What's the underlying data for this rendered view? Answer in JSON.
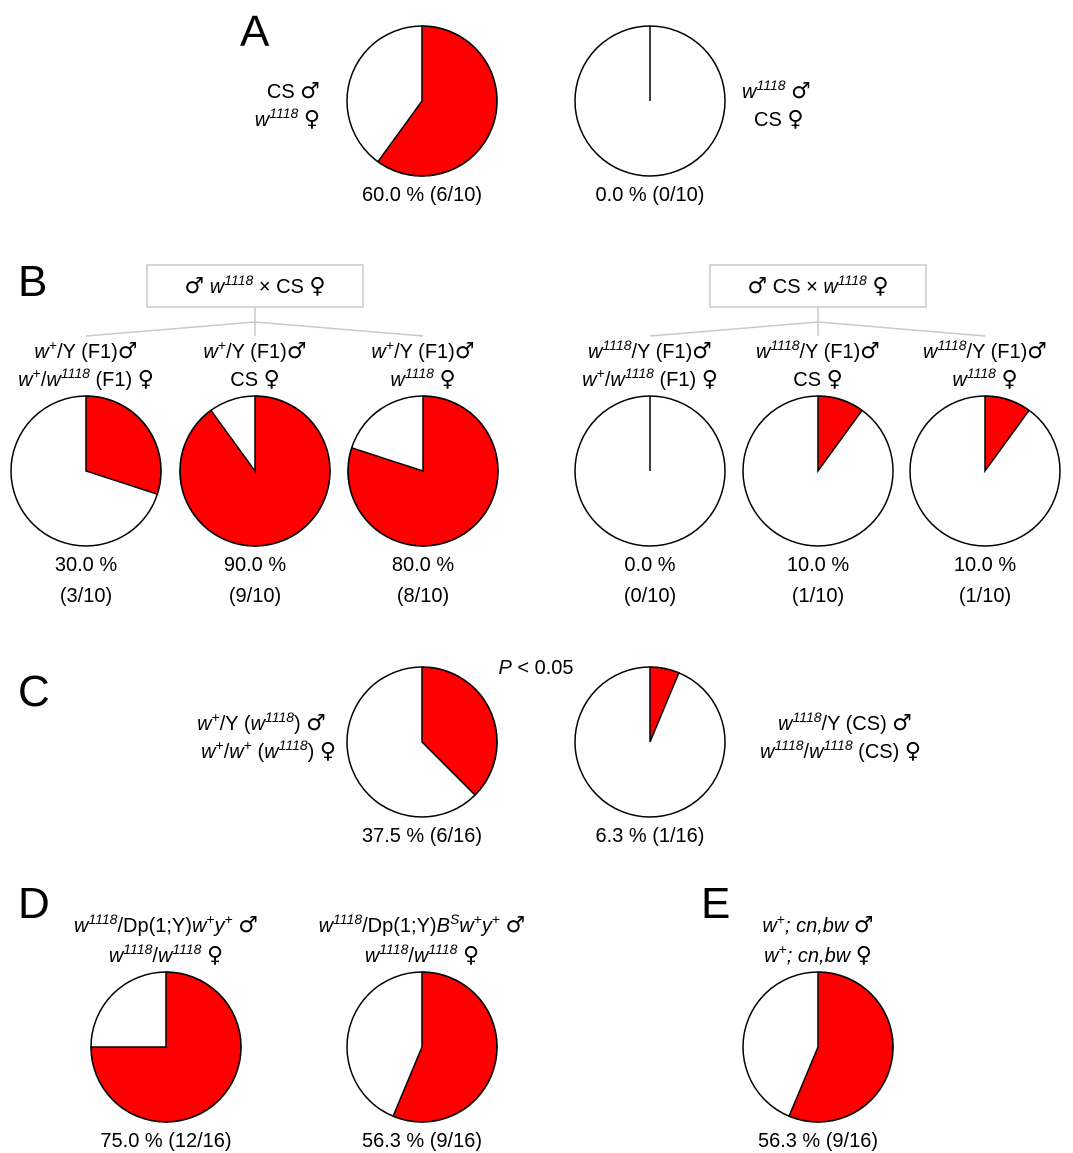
{
  "colors": {
    "positive": "#ff0000",
    "negative": "#ffffff",
    "outline": "#000000",
    "bracket": "#c8c8c8"
  },
  "chart_data": [
    {
      "panel": "A",
      "type": "pie",
      "label_lines": [
        [
          {
            "t": "CS "
          },
          {
            "t": "♂",
            "sym": true
          }
        ],
        [
          {
            "t": "w",
            "i": true
          },
          {
            "t": "1118",
            "i": true,
            "sup": true
          },
          {
            "t": " "
          },
          {
            "t": "♀",
            "sym": true
          }
        ]
      ],
      "pies": [
        {
          "value": 60.0,
          "text": "60.0 % (6/10)"
        },
        {
          "value": 0.0,
          "text": "0.0 % (0/10)"
        }
      ],
      "right_label_lines": [
        [
          {
            "t": "w",
            "i": true
          },
          {
            "t": "1118",
            "i": true,
            "sup": true
          },
          {
            "t": " "
          },
          {
            "t": "♂",
            "sym": true
          }
        ],
        [
          {
            "t": "CS "
          },
          {
            "t": "♀",
            "sym": true
          }
        ]
      ]
    },
    {
      "panel": "B",
      "type": "pie",
      "crosses": [
        [
          {
            "t": "♂",
            "sym": true
          },
          {
            "t": "  "
          },
          {
            "t": "w",
            "i": true
          },
          {
            "t": "1118",
            "i": true,
            "sup": true
          },
          {
            "t": " × CS  "
          },
          {
            "t": "♀",
            "sym": true
          }
        ],
        [
          {
            "t": "♂",
            "sym": true
          },
          {
            "t": "  CS × "
          },
          {
            "t": "w",
            "i": true
          },
          {
            "t": "1118",
            "i": true,
            "sup": true
          },
          {
            "t": "   "
          },
          {
            "t": "♀",
            "sym": true
          }
        ]
      ],
      "pies": [
        {
          "value": 30.0,
          "text_lines": [
            "30.0 %",
            "(3/10)"
          ],
          "label_lines": [
            [
              {
                "t": "w",
                "i": true
              },
              {
                "t": "+",
                "sup": true
              },
              {
                "t": "/Y (F1)"
              },
              {
                "t": "♂",
                "sym": true
              }
            ],
            [
              {
                "t": "w",
                "i": true
              },
              {
                "t": "+",
                "sup": true
              },
              {
                "t": "/"
              },
              {
                "t": "w",
                "i": true
              },
              {
                "t": "1118",
                "i": true,
                "sup": true
              },
              {
                "t": " (F1) "
              },
              {
                "t": "♀",
                "sym": true
              }
            ]
          ]
        },
        {
          "value": 90.0,
          "text_lines": [
            "90.0 %",
            "(9/10)"
          ],
          "label_lines": [
            [
              {
                "t": "w",
                "i": true
              },
              {
                "t": "+",
                "sup": true
              },
              {
                "t": "/Y (F1)"
              },
              {
                "t": "♂",
                "sym": true
              }
            ],
            [
              {
                "t": "CS "
              },
              {
                "t": "♀",
                "sym": true
              }
            ]
          ]
        },
        {
          "value": 80.0,
          "text_lines": [
            "80.0 %",
            "(8/10)"
          ],
          "label_lines": [
            [
              {
                "t": "w",
                "i": true
              },
              {
                "t": "+",
                "sup": true
              },
              {
                "t": "/Y (F1)"
              },
              {
                "t": "♂",
                "sym": true
              }
            ],
            [
              {
                "t": "w",
                "i": true
              },
              {
                "t": "1118",
                "i": true,
                "sup": true
              },
              {
                "t": " "
              },
              {
                "t": "♀",
                "sym": true
              }
            ]
          ]
        },
        {
          "value": 0.0,
          "text_lines": [
            "0.0 %",
            "(0/10)"
          ],
          "label_lines": [
            [
              {
                "t": "w",
                "i": true
              },
              {
                "t": "1118",
                "i": true,
                "sup": true
              },
              {
                "t": "/Y (F1)"
              },
              {
                "t": "♂",
                "sym": true
              }
            ],
            [
              {
                "t": "w",
                "i": true
              },
              {
                "t": "+",
                "sup": true
              },
              {
                "t": "/"
              },
              {
                "t": "w",
                "i": true
              },
              {
                "t": "1118",
                "i": true,
                "sup": true
              },
              {
                "t": " (F1) "
              },
              {
                "t": "♀",
                "sym": true
              }
            ]
          ]
        },
        {
          "value": 10.0,
          "text_lines": [
            "10.0 %",
            "(1/10)"
          ],
          "label_lines": [
            [
              {
                "t": "w",
                "i": true
              },
              {
                "t": "1118",
                "i": true,
                "sup": true
              },
              {
                "t": "/Y (F1)"
              },
              {
                "t": "♂",
                "sym": true
              }
            ],
            [
              {
                "t": "CS "
              },
              {
                "t": "♀",
                "sym": true
              }
            ]
          ]
        },
        {
          "value": 10.0,
          "text_lines": [
            "10.0 %",
            "(1/10)"
          ],
          "label_lines": [
            [
              {
                "t": "w",
                "i": true
              },
              {
                "t": "1118",
                "i": true,
                "sup": true
              },
              {
                "t": "/Y (F1)"
              },
              {
                "t": "♂",
                "sym": true
              }
            ],
            [
              {
                "t": "w",
                "i": true
              },
              {
                "t": "1118",
                "i": true,
                "sup": true
              },
              {
                "t": " "
              },
              {
                "t": "♀",
                "sym": true
              }
            ]
          ]
        }
      ]
    },
    {
      "panel": "C",
      "type": "pie",
      "p_value": [
        {
          "t": "P",
          "i": true
        },
        {
          "t": " < 0.05"
        }
      ],
      "label_lines": [
        [
          {
            "t": "w",
            "i": true
          },
          {
            "t": "+",
            "sup": true
          },
          {
            "t": "/Y ("
          },
          {
            "t": "w",
            "i": true
          },
          {
            "t": "1118",
            "i": true,
            "sup": true
          },
          {
            "t": ") "
          },
          {
            "t": "♂",
            "sym": true
          }
        ],
        [
          {
            "t": "w",
            "i": true
          },
          {
            "t": "+",
            "sup": true
          },
          {
            "t": "/"
          },
          {
            "t": "w",
            "i": true
          },
          {
            "t": "+",
            "sup": true
          },
          {
            "t": " ("
          },
          {
            "t": "w",
            "i": true
          },
          {
            "t": "1118",
            "i": true,
            "sup": true
          },
          {
            "t": ") "
          },
          {
            "t": "♀",
            "sym": true
          }
        ]
      ],
      "pies": [
        {
          "value": 37.5,
          "text": "37.5 %  (6/16)"
        },
        {
          "value": 6.3,
          "text": "6.3 % (1/16)"
        }
      ],
      "right_label_lines": [
        [
          {
            "t": "w",
            "i": true
          },
          {
            "t": "1118",
            "i": true,
            "sup": true
          },
          {
            "t": "/Y (CS) "
          },
          {
            "t": "♂",
            "sym": true
          }
        ],
        [
          {
            "t": "w",
            "i": true
          },
          {
            "t": "1118",
            "i": true,
            "sup": true
          },
          {
            "t": "/"
          },
          {
            "t": "w",
            "i": true
          },
          {
            "t": "1118",
            "i": true,
            "sup": true
          },
          {
            "t": " (CS) "
          },
          {
            "t": "♀",
            "sym": true
          }
        ]
      ]
    },
    {
      "panel": "D",
      "type": "pie",
      "pies": [
        {
          "value": 75.0,
          "text": "75.0 % (12/16)",
          "label_lines": [
            [
              {
                "t": "w",
                "i": true
              },
              {
                "t": "1118",
                "i": true,
                "sup": true
              },
              {
                "t": "/Dp(1;Y)"
              },
              {
                "t": "w",
                "i": true
              },
              {
                "t": "+",
                "sup": true
              },
              {
                "t": "y",
                "i": true
              },
              {
                "t": "+",
                "sup": true
              },
              {
                "t": " "
              },
              {
                "t": "♂",
                "sym": true
              }
            ],
            [
              {
                "t": "w",
                "i": true
              },
              {
                "t": "1118",
                "i": true,
                "sup": true
              },
              {
                "t": "/"
              },
              {
                "t": "w",
                "i": true
              },
              {
                "t": "1118",
                "i": true,
                "sup": true
              },
              {
                "t": "  "
              },
              {
                "t": "♀",
                "sym": true
              }
            ]
          ]
        },
        {
          "value": 56.3,
          "text": "56.3 % (9/16)",
          "label_lines": [
            [
              {
                "t": "w",
                "i": true
              },
              {
                "t": "1118",
                "i": true,
                "sup": true
              },
              {
                "t": "/Dp(1;Y)"
              },
              {
                "t": "B",
                "i": true
              },
              {
                "t": "S",
                "i": true,
                "sup": true
              },
              {
                "t": "w",
                "i": true
              },
              {
                "t": "+",
                "sup": true
              },
              {
                "t": "y",
                "i": true
              },
              {
                "t": "+",
                "sup": true
              },
              {
                "t": " "
              },
              {
                "t": "♂",
                "sym": true
              }
            ],
            [
              {
                "t": "w",
                "i": true
              },
              {
                "t": "1118",
                "i": true,
                "sup": true
              },
              {
                "t": "/"
              },
              {
                "t": "w",
                "i": true
              },
              {
                "t": "1118",
                "i": true,
                "sup": true
              },
              {
                "t": "  "
              },
              {
                "t": "♀",
                "sym": true
              }
            ]
          ]
        }
      ]
    },
    {
      "panel": "E",
      "type": "pie",
      "pies": [
        {
          "value": 56.3,
          "text": "56.3 % (9/16)",
          "label_lines": [
            [
              {
                "t": "w",
                "i": true
              },
              {
                "t": "+",
                "sup": true
              },
              {
                "t": "; cn,bw",
                "i": true
              },
              {
                "t": " "
              },
              {
                "t": "♂",
                "sym": true
              }
            ],
            [
              {
                "t": "w",
                "i": true
              },
              {
                "t": "+",
                "sup": true
              },
              {
                "t": "; cn,bw",
                "i": true
              },
              {
                "t": " "
              },
              {
                "t": "♀",
                "sym": true
              }
            ]
          ]
        }
      ]
    }
  ]
}
